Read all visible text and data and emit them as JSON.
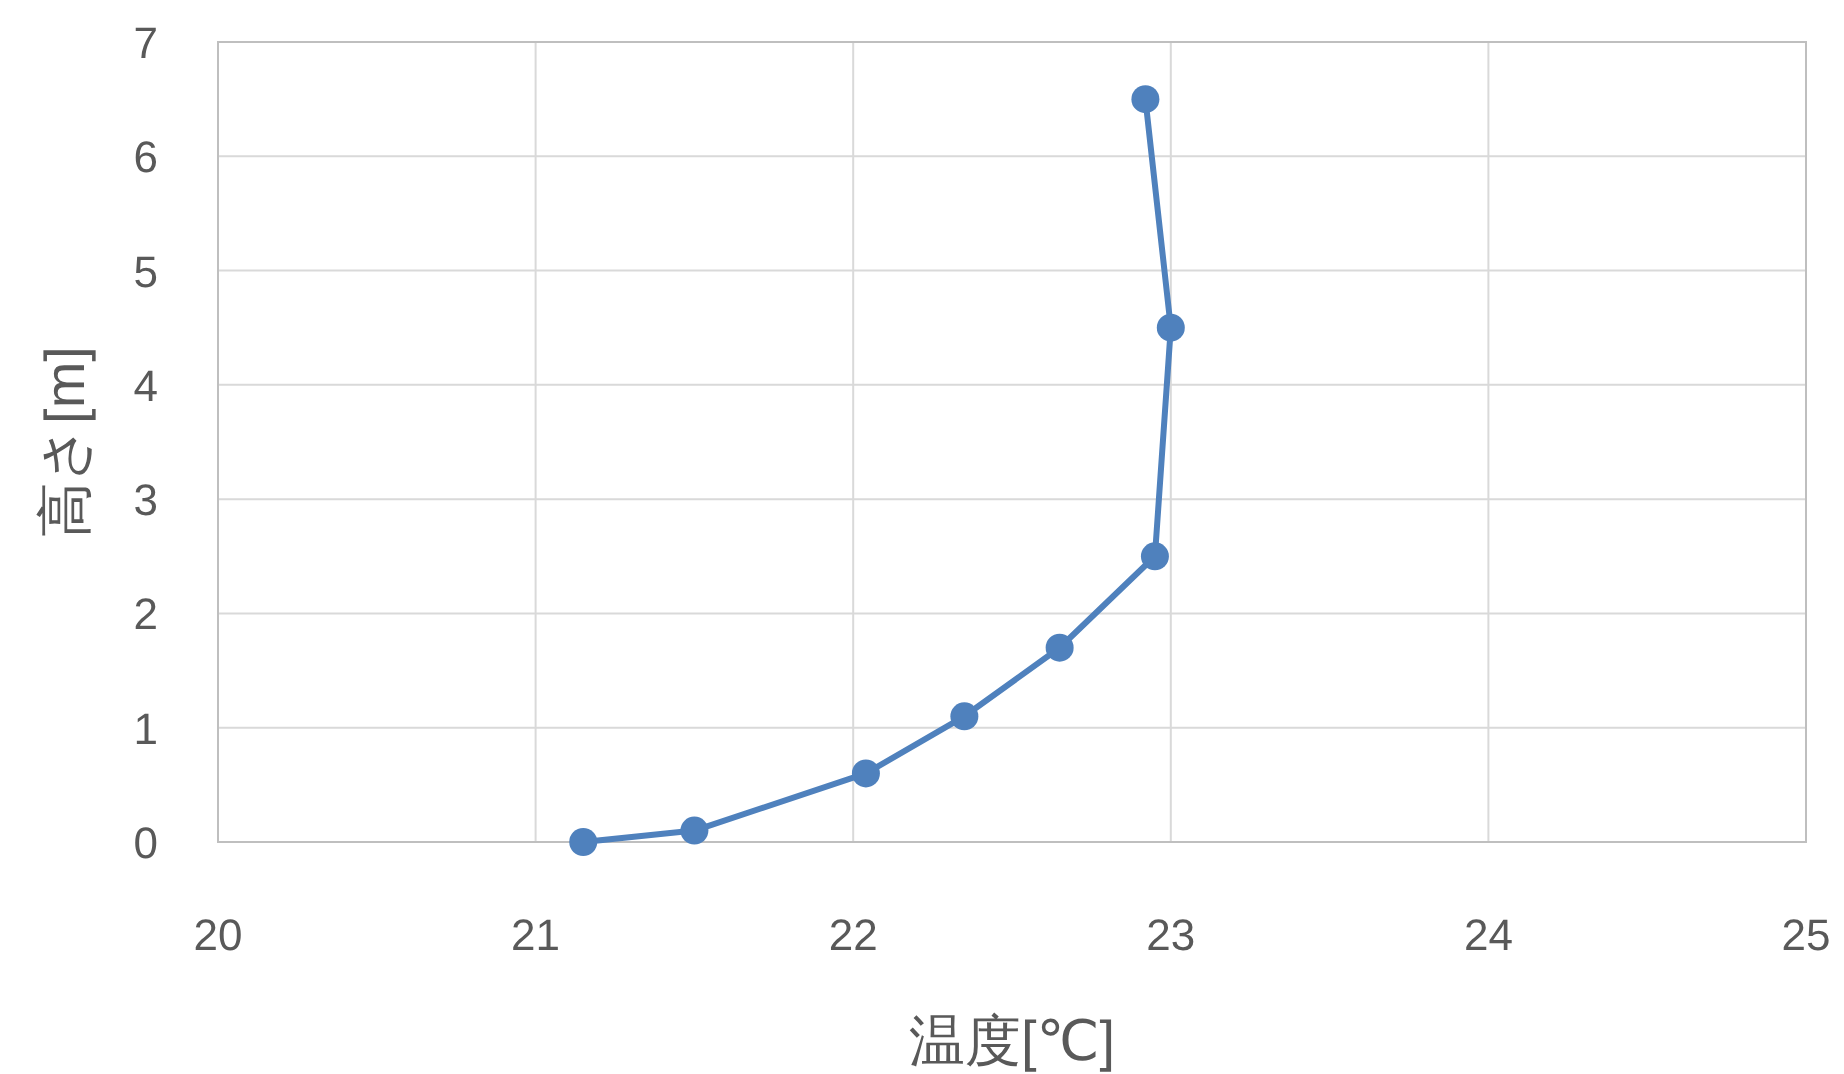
{
  "chart_data": {
    "type": "line",
    "xlabel": "温度[℃]",
    "ylabel": "高さ[m]",
    "x": [
      21.15,
      21.5,
      22.04,
      22.35,
      22.65,
      22.95,
      23.0,
      22.92
    ],
    "series": [
      {
        "color": "#4f81bd",
        "values": [
          0,
          0.1,
          0.6,
          1.1,
          1.7,
          2.5,
          4.5,
          6.5
        ]
      }
    ],
    "xlim": [
      20,
      25
    ],
    "xticks": [
      20,
      21,
      22,
      23,
      24,
      25
    ],
    "ylim": [
      0,
      7
    ],
    "yticks": [
      0,
      1,
      2,
      3,
      4,
      5,
      6,
      7
    ],
    "grid": true,
    "marker": "circle",
    "line_style": "solid"
  }
}
